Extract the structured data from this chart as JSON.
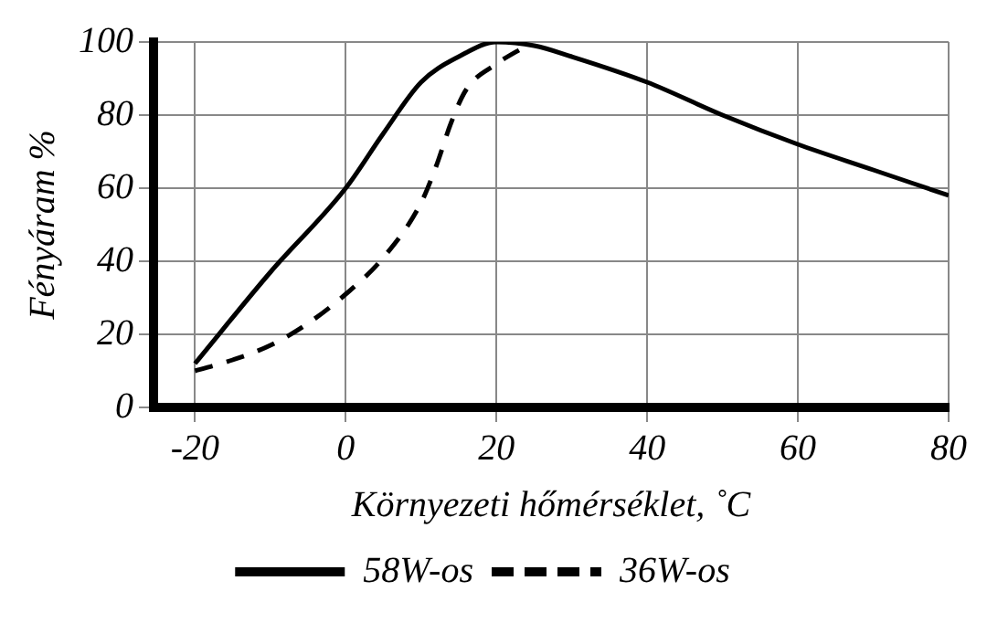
{
  "chart_data": {
    "type": "line",
    "xlabel": "Környezeti hőmérséklet, ˚C",
    "ylabel": "Fényáram %",
    "xlim": [
      -25.5,
      80
    ],
    "xticks": [
      -20,
      0,
      20,
      40,
      60,
      80
    ],
    "ylim": [
      0,
      100
    ],
    "yticks": [
      0,
      20,
      40,
      60,
      80,
      100
    ],
    "grid": true,
    "legend": "bottom",
    "marker": "none",
    "series": [
      {
        "name": "58W-os",
        "color": "#000000",
        "line_style": "solid",
        "x": [
          -20,
          -10,
          0,
          5,
          10,
          15,
          20,
          25,
          30,
          40,
          50,
          60,
          70,
          80
        ],
        "values": [
          12,
          37,
          60,
          75,
          89,
          96,
          100,
          99,
          96,
          89,
          80,
          72,
          65,
          58
        ]
      },
      {
        "name": "36W-os",
        "color": "#000000",
        "line_style": "dashed",
        "x": [
          -20,
          -15,
          -10,
          -5,
          0,
          5,
          10,
          12,
          14,
          16,
          20,
          24
        ],
        "values": [
          10,
          13,
          17,
          23,
          31,
          41,
          56,
          66,
          78,
          87,
          94,
          99
        ]
      }
    ]
  }
}
